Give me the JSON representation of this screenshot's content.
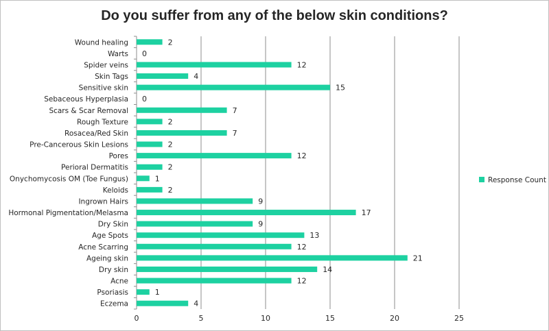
{
  "chart_data": {
    "type": "bar",
    "orientation": "horizontal",
    "title": "Do you suffer from any of the below skin conditions?",
    "categories": [
      "Wound healing",
      "Warts",
      "Spider veins",
      "Skin Tags",
      "Sensitive skin",
      "Sebaceous Hyperplasia",
      "Scars & Scar Removal",
      "Rough Texture",
      "Rosacea/Red Skin",
      "Pre-Cancerous Skin Lesions",
      "Pores",
      "Perioral Dermatitis",
      "Onychomycosis OM (Toe Fungus)",
      "Keloids",
      "Ingrown Hairs",
      "Hormonal Pigmentation/Melasma",
      "Dry Skin",
      "Age Spots",
      "Acne Scarring",
      "Ageing skin",
      "Dry skin",
      "Acne",
      "Psoriasis",
      "Eczema"
    ],
    "series": [
      {
        "name": "Response Count",
        "color": "#1dd1a1",
        "values": [
          2,
          0,
          12,
          4,
          15,
          0,
          7,
          2,
          7,
          2,
          12,
          2,
          1,
          2,
          9,
          17,
          9,
          13,
          12,
          21,
          14,
          12,
          1,
          4
        ]
      }
    ],
    "xlim": [
      0,
      25
    ],
    "xticks": [
      "0",
      "5",
      "10",
      "15",
      "20",
      "25"
    ],
    "grid": "vertical",
    "legend_position": "right",
    "data_labels": true
  }
}
